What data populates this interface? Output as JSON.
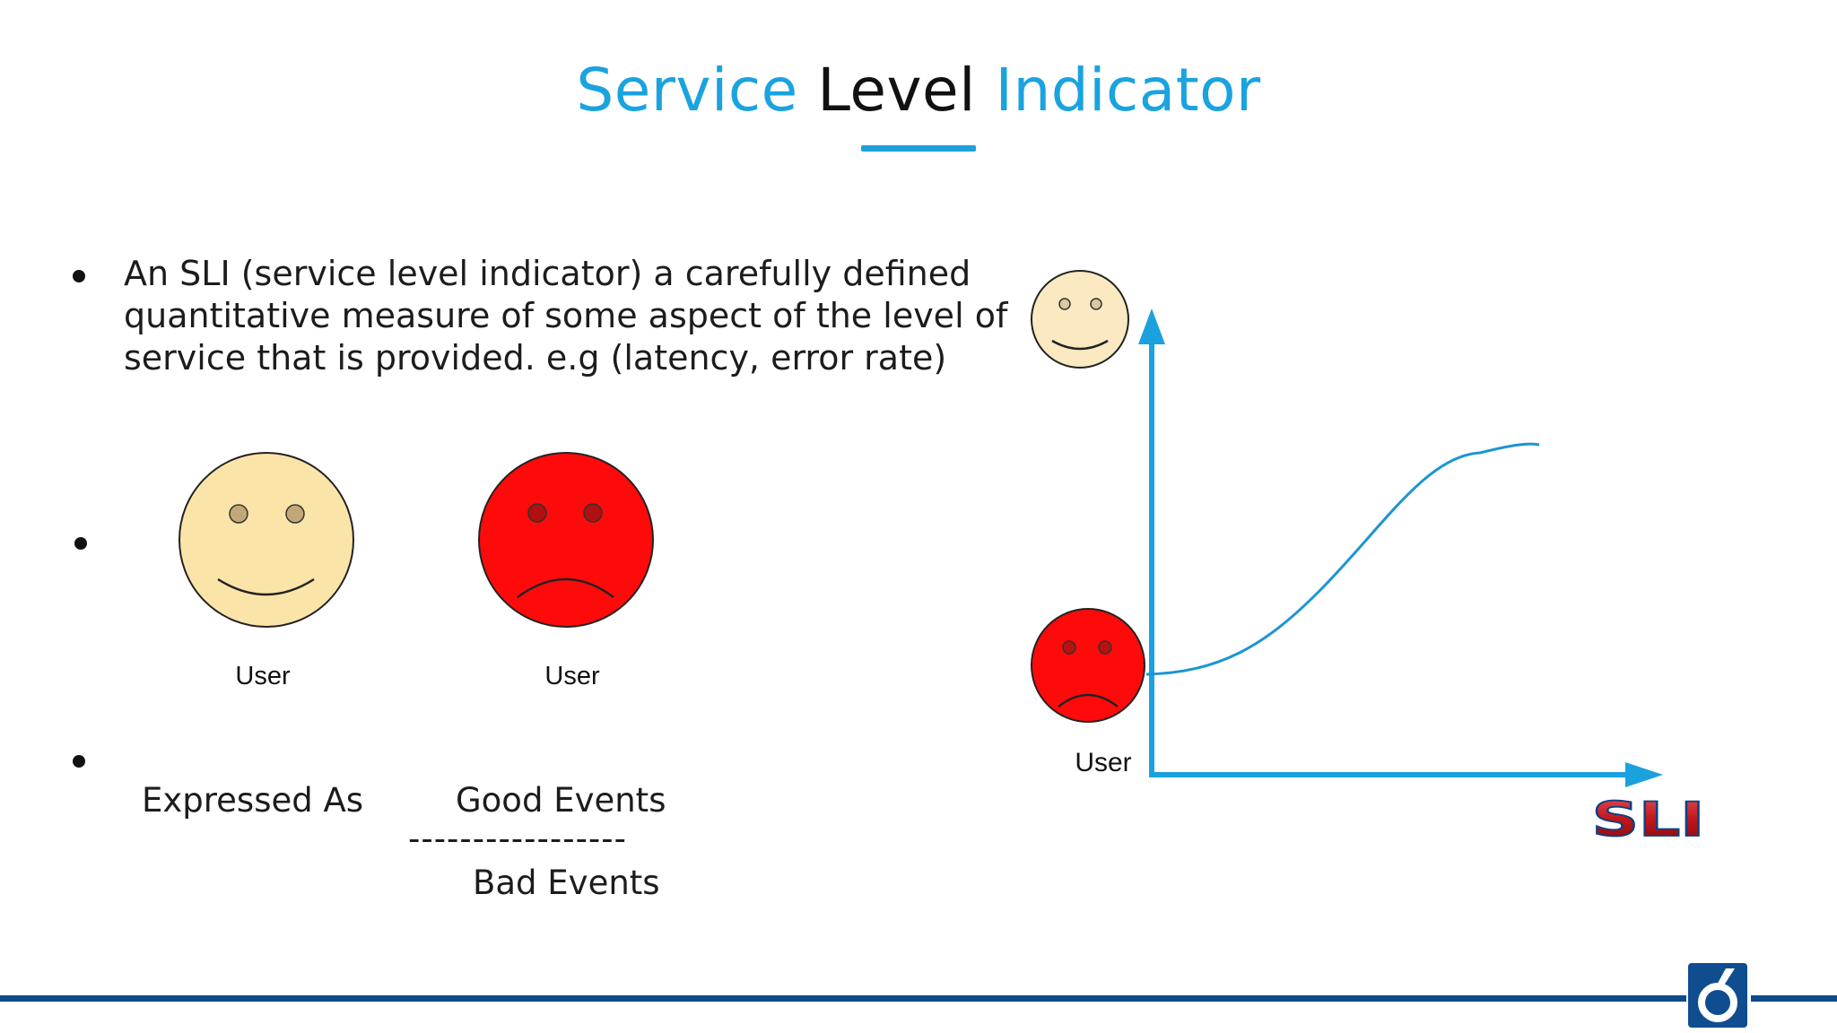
{
  "slide": {
    "title": {
      "part1": "Service",
      "part2": "Level",
      "part3": "Indicator"
    },
    "definition_text": "An SLI (service level indicator) a carefully defined quantitative measure of some aspect of the level of service that is provided. e.g (latency, error rate)",
    "faces": {
      "happy_label": "User",
      "sad_label": "User"
    },
    "formula": {
      "prefix": "Expressed As",
      "numerator": "Good Events",
      "divider": "-----------------",
      "denominator": "Bad Events"
    }
  },
  "diagram": {
    "sad_user_label": "User",
    "axis_label": "SLI",
    "colors": {
      "axis": "#1ba1dd",
      "curve": "#1b95d3",
      "happy_face": "#fbe7bd",
      "sad_face": "#ff0a0a",
      "sli_text": "#c7171f"
    }
  },
  "colors": {
    "accent": "#1aa3df",
    "footer": "#0d4a8a"
  }
}
